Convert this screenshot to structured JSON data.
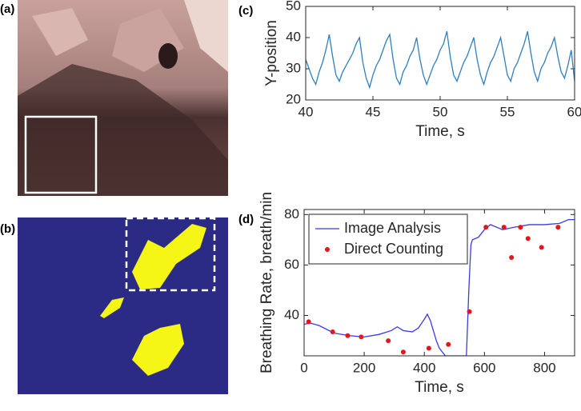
{
  "panel_labels": [
    "(a)",
    "(b)",
    "(c)",
    "(d)"
  ],
  "chart_data": [
    {
      "type": "line",
      "xlabel": "Time, s",
      "ylabel": "Y-position",
      "xlim": [
        40,
        60
      ],
      "xticks": [
        40,
        45,
        50,
        55,
        60
      ],
      "ylim": [
        20,
        50
      ],
      "yticks": [
        20,
        30,
        40,
        50
      ],
      "series": [
        {
          "style": "line",
          "color": "#2e7fbf",
          "x": [
            40,
            40.25,
            40.5,
            40.75,
            41,
            41.25,
            41.5,
            41.75,
            42,
            42.25,
            42.5,
            42.75,
            43,
            43.25,
            43.5,
            43.75,
            44,
            44.25,
            44.5,
            44.75,
            45,
            45.25,
            45.5,
            45.75,
            46,
            46.25,
            46.5,
            46.75,
            47,
            47.25,
            47.5,
            47.75,
            48,
            48.25,
            48.5,
            48.75,
            49,
            49.25,
            49.5,
            49.75,
            50,
            50.25,
            50.5,
            50.75,
            51,
            51.25,
            51.5,
            51.75,
            52,
            52.25,
            52.5,
            52.75,
            53,
            53.25,
            53.5,
            53.75,
            54,
            54.25,
            54.5,
            54.75,
            55,
            55.25,
            55.5,
            55.75,
            56,
            56.25,
            56.5,
            56.75,
            57,
            57.25,
            57.5,
            57.75,
            58,
            58.25,
            58.5,
            58.75,
            59,
            59.25,
            59.5,
            59.75,
            60
          ],
          "values": [
            33,
            30,
            27,
            25,
            29,
            32,
            36,
            41,
            34,
            28,
            26,
            29,
            31,
            33,
            35,
            38,
            40,
            32,
            27,
            24,
            28,
            31,
            33,
            36,
            39,
            41,
            33,
            27,
            25,
            29,
            31,
            34,
            36,
            40,
            33,
            28,
            25,
            28,
            31,
            33,
            36,
            38,
            42,
            34,
            28,
            26,
            29,
            32,
            34,
            37,
            40,
            33,
            28,
            25,
            29,
            32,
            34,
            37,
            40,
            34,
            28,
            26,
            30,
            32,
            35,
            38,
            42,
            35,
            29,
            26,
            30,
            32,
            35,
            37,
            40,
            34,
            29,
            27,
            31,
            36,
            26
          ]
        }
      ]
    },
    {
      "type": "line",
      "xlabel": "Time, s",
      "ylabel": "Breathing Rate, breath/min",
      "xlim": [
        0,
        900
      ],
      "xticks": [
        0,
        200,
        400,
        600,
        800
      ],
      "ylim": [
        24,
        82
      ],
      "yticks": [
        40,
        60,
        80
      ],
      "legend": "upper left",
      "series": [
        {
          "name": "Image Analysis",
          "style": "line",
          "color": "#3a3ae6",
          "x": [
            0,
            20,
            50,
            100,
            150,
            200,
            250,
            290,
            310,
            330,
            360,
            380,
            400,
            410,
            420,
            440,
            450,
            470,
            540,
            548,
            555,
            560,
            580,
            600,
            620,
            660,
            700,
            750,
            800,
            850,
            880,
            900
          ],
          "values": [
            36.5,
            37,
            36,
            33,
            32,
            31.5,
            32.5,
            34,
            35.5,
            34,
            33.5,
            35,
            38.5,
            40.5,
            38,
            30,
            27,
            24,
            24,
            50,
            68,
            70,
            71,
            74,
            76,
            74,
            75,
            76,
            76,
            76.5,
            78,
            78
          ]
        },
        {
          "name": "Direct Counting",
          "style": "markers",
          "color": "#e8141c",
          "x": [
            15,
            95,
            145,
            190,
            280,
            330,
            415,
            480,
            550,
            605,
            665,
            690,
            720,
            745,
            790,
            845
          ],
          "values": [
            37.5,
            33.5,
            32,
            31.5,
            30,
            25.5,
            27,
            28.5,
            41.5,
            75,
            75,
            63,
            75,
            70.5,
            67,
            75
          ]
        }
      ]
    }
  ]
}
